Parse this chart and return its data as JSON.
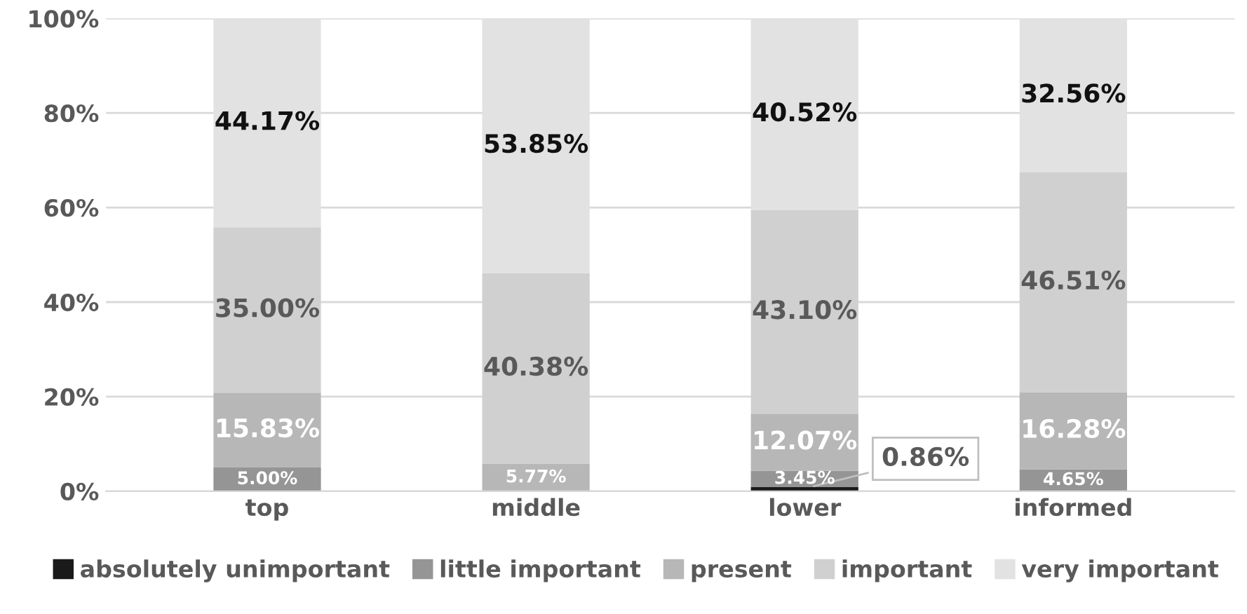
{
  "chart_data": {
    "type": "bar",
    "stacked": true,
    "categories": [
      "top",
      "middle",
      "lower",
      "informed"
    ],
    "series": [
      {
        "name": "absolutely unimportant",
        "color": "#1a1a1a",
        "values": [
          0,
          0,
          0.86,
          0
        ],
        "value_labels": [
          null,
          null,
          "0.86%",
          null
        ]
      },
      {
        "name": "little important",
        "color": "#959595",
        "values": [
          5.0,
          0,
          3.45,
          4.65
        ],
        "value_labels": [
          "5.00%",
          null,
          "3.45%",
          "4.65%"
        ]
      },
      {
        "name": "present",
        "color": "#b7b7b7",
        "values": [
          15.83,
          5.77,
          12.07,
          16.28
        ],
        "value_labels": [
          "15.83%",
          "5.77%",
          "12.07%",
          "16.28%"
        ]
      },
      {
        "name": "important",
        "color": "#cfd0cf",
        "values": [
          35.0,
          40.38,
          43.1,
          46.51
        ],
        "value_labels": [
          "35.00%",
          "40.38%",
          "43.10%",
          "46.51%"
        ]
      },
      {
        "name": "very important",
        "color": "#e2e2e2",
        "values": [
          44.17,
          53.85,
          40.52,
          32.56
        ],
        "value_labels": [
          "44.17%",
          "53.85%",
          "40.52%",
          "32.56%"
        ]
      }
    ],
    "ylim": [
      0,
      100
    ],
    "yticks": [
      {
        "value": 0,
        "label": "0%"
      },
      {
        "value": 20,
        "label": "20%"
      },
      {
        "value": 40,
        "label": "40%"
      },
      {
        "value": 60,
        "label": "60%"
      },
      {
        "value": 80,
        "label": "80%"
      },
      {
        "value": 100,
        "label": "100%"
      }
    ],
    "grid": "y",
    "legend": "bottom"
  }
}
